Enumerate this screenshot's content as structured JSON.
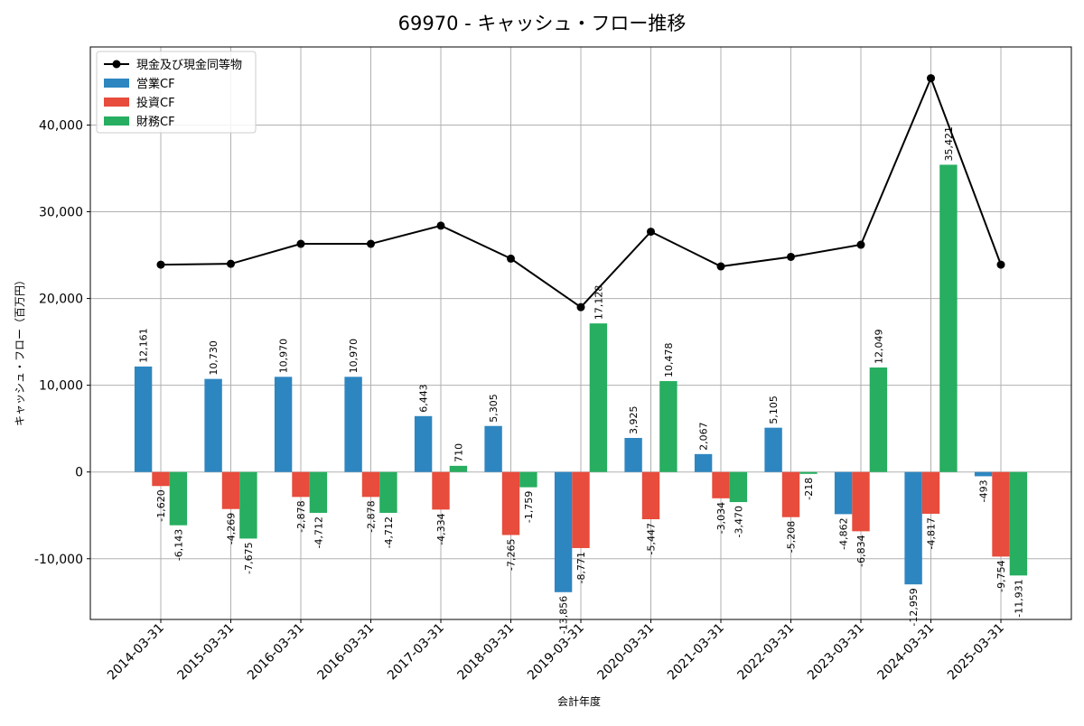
{
  "chart_data": {
    "type": "bar",
    "title": "69970 - キャッシュ・フロー推移",
    "xlabel": "会計年度",
    "ylabel": "キャッシュ・フロー（百万円）",
    "ylim": [
      -17000,
      49000
    ],
    "yticks": [
      -10000,
      0,
      10000,
      20000,
      30000,
      40000
    ],
    "ytick_labels": [
      "-10,000",
      "0",
      "10,000",
      "20,000",
      "30,000",
      "40,000"
    ],
    "grid": true,
    "legend_position": "top-left",
    "categories": [
      "2014-03-31",
      "2015-03-31",
      "2016-03-31",
      "2016-03-31",
      "2017-03-31",
      "2018-03-31",
      "2019-03-31",
      "2020-03-31",
      "2021-03-31",
      "2022-03-31",
      "2023-03-31",
      "2024-03-31",
      "2025-03-31"
    ],
    "series": [
      {
        "name": "営業CF",
        "kind": "bar",
        "color": "#2e86c1",
        "values": [
          12161,
          10730,
          10970,
          10970,
          6443,
          5305,
          -13856,
          3925,
          2067,
          5105,
          -4862,
          -12959,
          -493
        ],
        "labels": [
          "12,161",
          "10,730",
          "10,970",
          "10,970",
          "6,443",
          "5,305",
          "-13,856",
          "3,925",
          "2,067",
          "5,105",
          "-4,862",
          "-12,959",
          "-493"
        ]
      },
      {
        "name": "投資CF",
        "kind": "bar",
        "color": "#e74c3c",
        "values": [
          -1620,
          -4269,
          -2878,
          -2878,
          -4334,
          -7265,
          -8771,
          -5447,
          -3034,
          -5208,
          -6834,
          -4817,
          -9754
        ],
        "labels": [
          "-1,620",
          "-4,269",
          "-2,878",
          "-2,878",
          "-4,334",
          "-7,265",
          "-8,771",
          "-5,447",
          "-3,034",
          "-5,208",
          "-6,834",
          "-4,817",
          "-9,754"
        ]
      },
      {
        "name": "財務CF",
        "kind": "bar",
        "color": "#27ae60",
        "values": [
          -6143,
          -7675,
          -4712,
          -4712,
          710,
          -1759,
          17128,
          10478,
          -3470,
          -218,
          12049,
          35421,
          -11931
        ],
        "labels": [
          "-6,143",
          "-7,675",
          "-4,712",
          "-4,712",
          "710",
          "-1,759",
          "17,128",
          "10,478",
          "-3,470",
          "-218",
          "12,049",
          "35,421",
          "-11,931"
        ]
      },
      {
        "name": "現金及び現金同等物",
        "kind": "line",
        "color": "#000000",
        "values": [
          23900,
          24000,
          26300,
          26300,
          28400,
          24600,
          19000,
          27700,
          23700,
          24800,
          26200,
          45400,
          23900
        ]
      }
    ]
  }
}
